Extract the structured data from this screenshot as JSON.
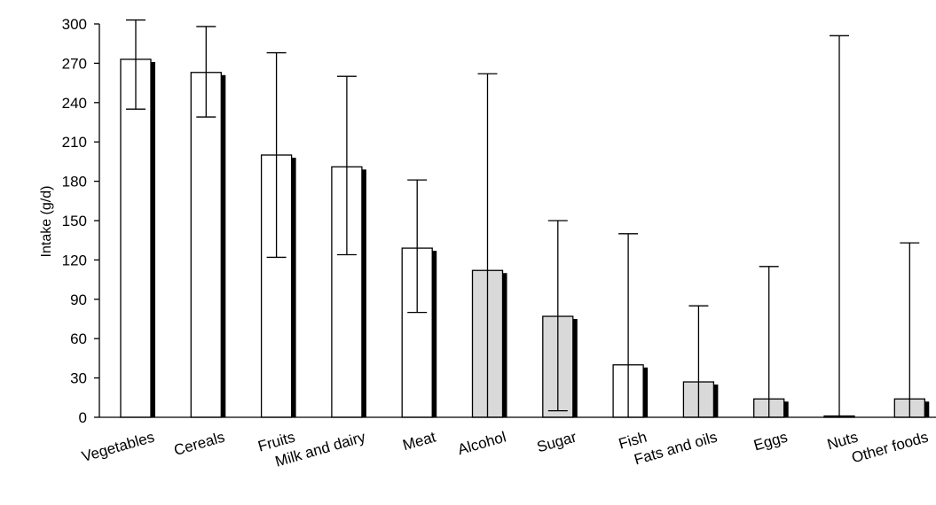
{
  "chart_data": {
    "type": "bar",
    "title": "",
    "xlabel": "",
    "ylabel": "Intake (g/d)",
    "ylim": [
      0,
      300
    ],
    "yticks": [
      0,
      30,
      60,
      90,
      120,
      150,
      180,
      210,
      240,
      270,
      300
    ],
    "categories": [
      "Vegetables",
      "Cereals",
      "Fruits",
      "Milk and dairy",
      "Meat",
      "Alcohol",
      "Sugar",
      "Fish",
      "Fats and oils",
      "Eggs",
      "Nuts",
      "Other  foods"
    ],
    "values": [
      273,
      263,
      200,
      191,
      129,
      112,
      77,
      40,
      27,
      14,
      1,
      14
    ],
    "error_upper": [
      303,
      298,
      278,
      260,
      181,
      262,
      150,
      140,
      85,
      115,
      291,
      133
    ],
    "error_lower": [
      235,
      229,
      122,
      124,
      80,
      null,
      5,
      null,
      null,
      null,
      null,
      null
    ],
    "bar_fill": [
      "#ffffff",
      "#ffffff",
      "#ffffff",
      "#ffffff",
      "#ffffff",
      "#d9d9d9",
      "#d9d9d9",
      "#ffffff",
      "#d9d9d9",
      "#d9d9d9",
      "#d9d9d9",
      "#d9d9d9"
    ],
    "bar_outline": "#000000",
    "bar_shadow": "#000000",
    "grid": false,
    "legend": "none"
  }
}
